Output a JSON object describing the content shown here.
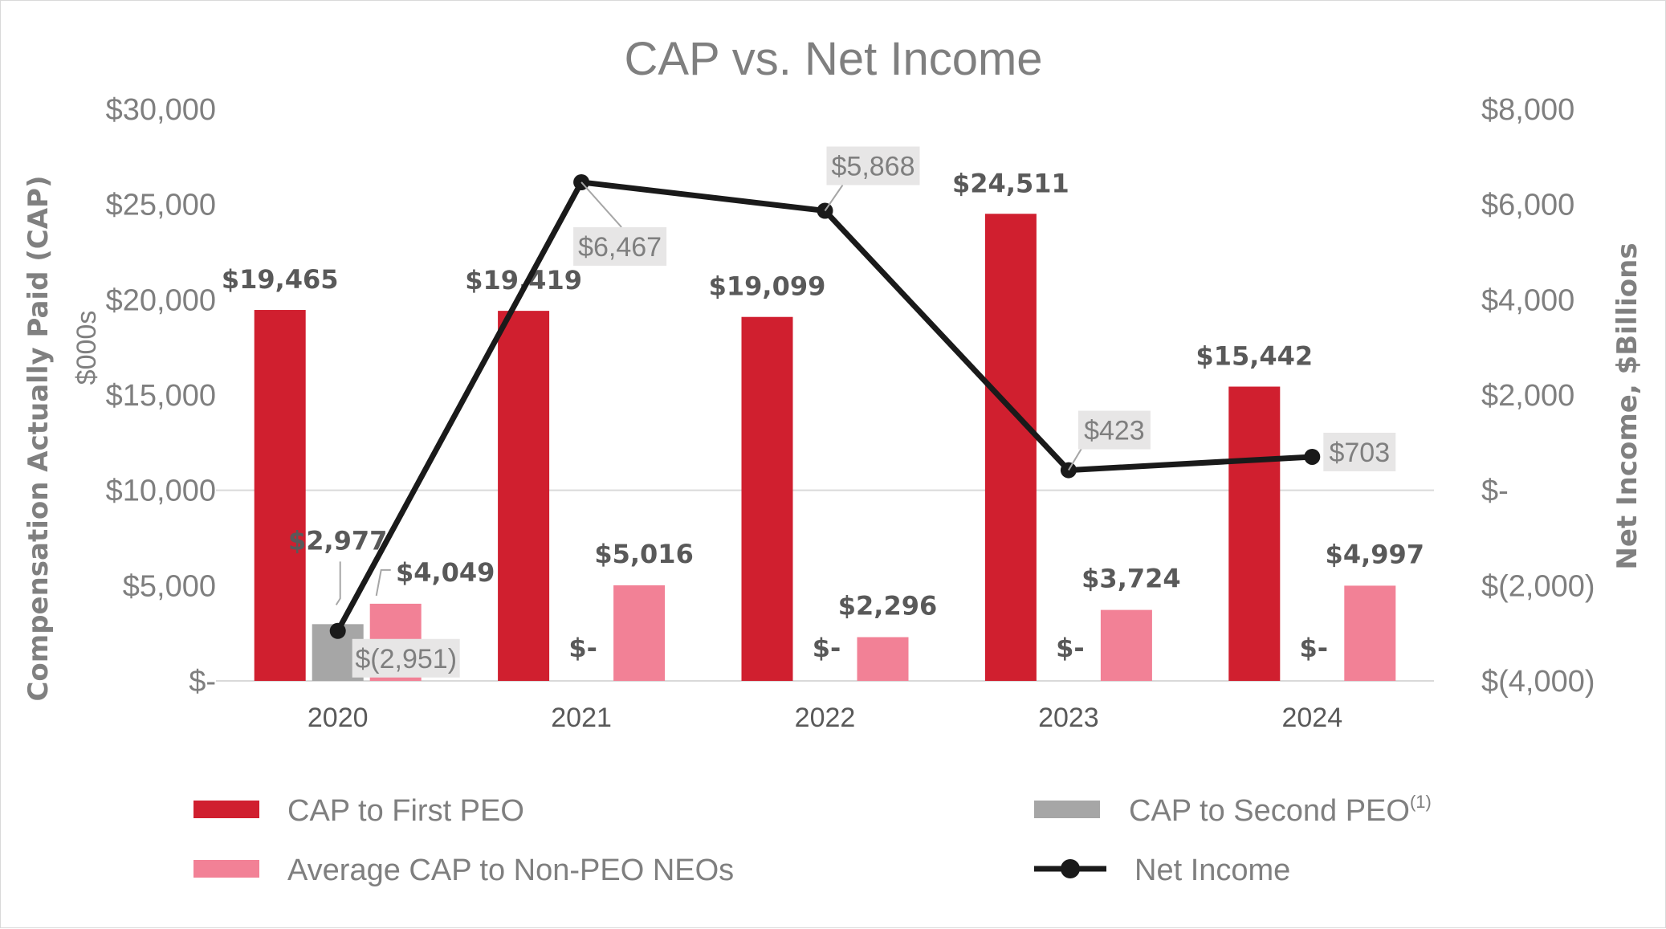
{
  "chart_data": {
    "type": "bar",
    "title": "CAP vs. Net Income",
    "categories": [
      "2020",
      "2021",
      "2022",
      "2023",
      "2024"
    ],
    "ylabel": "Compensation Actually Paid (CAP)",
    "ylabel_unit": "$000s",
    "y2label": "Net Income, $Billions",
    "ylim": [
      0,
      30000
    ],
    "y2lim": [
      -4000,
      8000
    ],
    "y_ticks": [
      {
        "value": 0,
        "label": "$-"
      },
      {
        "value": 5000,
        "label": "$5,000"
      },
      {
        "value": 10000,
        "label": "$10,000"
      },
      {
        "value": 15000,
        "label": "$15,000"
      },
      {
        "value": 20000,
        "label": "$20,000"
      },
      {
        "value": 25000,
        "label": "$25,000"
      },
      {
        "value": 30000,
        "label": "$30,000"
      }
    ],
    "y2_ticks": [
      {
        "value": -4000,
        "label": "$(4,000)"
      },
      {
        "value": -2000,
        "label": "$(2,000)"
      },
      {
        "value": 0,
        "label": "$-"
      },
      {
        "value": 2000,
        "label": "$2,000"
      },
      {
        "value": 4000,
        "label": "$4,000"
      },
      {
        "value": 6000,
        "label": "$6,000"
      },
      {
        "value": 8000,
        "label": "$8,000"
      }
    ],
    "series": [
      {
        "name": "CAP to First PEO",
        "color": "#d01f2f",
        "values": [
          19465,
          19419,
          19099,
          24511,
          15442
        ],
        "labels": [
          "$19,465",
          "$19,419",
          "$19,099",
          "$24,511",
          "$15,442"
        ]
      },
      {
        "name": "CAP to Second PEO",
        "name_superscript": "(1)",
        "color": "#a6a6a6",
        "values": [
          2977,
          0,
          0,
          0,
          0
        ],
        "labels": [
          "$2,977",
          "$-",
          "$-",
          "$-",
          "$-"
        ]
      },
      {
        "name": "Average CAP to Non-PEO NEOs",
        "color": "#f28196",
        "values": [
          4049,
          5016,
          2296,
          3724,
          4997
        ],
        "labels": [
          "$4,049",
          "$5,016",
          "$2,296",
          "$3,724",
          "$4,997"
        ]
      },
      {
        "name": "Net Income",
        "type": "line",
        "axis": "y2",
        "color": "#1a1a1a",
        "values": [
          -2951,
          6467,
          5868,
          423,
          703
        ],
        "labels": [
          "$(2,951)",
          "$6,467",
          "$5,868",
          "$423",
          "$703"
        ]
      }
    ],
    "legend": [
      {
        "name": "CAP to First PEO",
        "swatch": "bar",
        "color": "#d01f2f"
      },
      {
        "name": "CAP to Second PEO",
        "superscript": "(1)",
        "swatch": "bar",
        "color": "#a6a6a6"
      },
      {
        "name": "Average CAP to Non-PEO NEOs",
        "swatch": "bar",
        "color": "#f28196"
      },
      {
        "name": "Net Income",
        "swatch": "line-marker",
        "color": "#1a1a1a"
      }
    ],
    "legend_position": "bottom",
    "grid": false
  }
}
